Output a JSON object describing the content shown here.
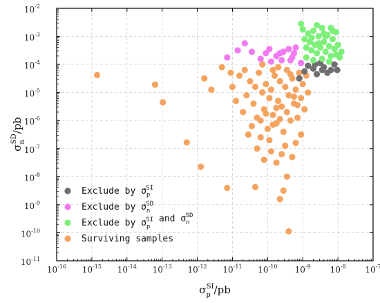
{
  "chart_data": {
    "type": "scatter",
    "x_scale": "log",
    "y_scale": "log",
    "xlim": [
      1e-16,
      1e-07
    ],
    "ylim": [
      1e-11,
      0.01
    ],
    "grid": true,
    "legend_position": "bottom-left",
    "x_ticks": [
      {
        "base": "10",
        "exp": "-16"
      },
      {
        "base": "10",
        "exp": "-15"
      },
      {
        "base": "10",
        "exp": "-14"
      },
      {
        "base": "10",
        "exp": "-13"
      },
      {
        "base": "10",
        "exp": "-12"
      },
      {
        "base": "10",
        "exp": "-11"
      },
      {
        "base": "10",
        "exp": "-10"
      },
      {
        "base": "10",
        "exp": "-9"
      },
      {
        "base": "10",
        "exp": "-8"
      },
      {
        "base": "10",
        "exp": "-7"
      }
    ],
    "y_ticks": [
      {
        "base": "10",
        "exp": "-11"
      },
      {
        "base": "10",
        "exp": "-10"
      },
      {
        "base": "10",
        "exp": "-9"
      },
      {
        "base": "10",
        "exp": "-8"
      },
      {
        "base": "10",
        "exp": "-7"
      },
      {
        "base": "10",
        "exp": "-6"
      },
      {
        "base": "10",
        "exp": "-5"
      },
      {
        "base": "10",
        "exp": "-4"
      },
      {
        "base": "10",
        "exp": "-3"
      },
      {
        "base": "10",
        "exp": "-2"
      }
    ],
    "xlabel": {
      "sym": "σ",
      "sup": "SI",
      "sub": "p",
      "unit": "/pb"
    },
    "ylabel": {
      "sym": "σ",
      "sup": "SD",
      "sub": "n",
      "unit": "/pb"
    },
    "series": [
      {
        "name": "Surviving samples",
        "legend_parts": [
          {
            "t": "Surviving samples"
          }
        ],
        "color": "#f4a460",
        "points": [
          [
            -14.85,
            -4.38
          ],
          [
            -13.2,
            -4.72
          ],
          [
            -12.98,
            -5.35
          ],
          [
            -12.3,
            -6.78
          ],
          [
            -11.9,
            -7.65
          ],
          [
            -11.15,
            -8.4
          ],
          [
            -10.35,
            -8.37
          ],
          [
            -9.4,
            -9.95
          ],
          [
            -11.8,
            -4.5
          ],
          [
            -11.6,
            -4.9
          ],
          [
            -11.3,
            -4.1
          ],
          [
            -11.0,
            -4.8
          ],
          [
            -10.9,
            -5.3
          ],
          [
            -10.8,
            -4.4
          ],
          [
            -10.7,
            -5.7
          ],
          [
            -10.6,
            -5.1
          ],
          [
            -10.5,
            -4.6
          ],
          [
            -10.45,
            -6.2
          ],
          [
            -10.4,
            -5.4
          ],
          [
            -10.35,
            -4.8
          ],
          [
            -10.3,
            -5.9
          ],
          [
            -10.25,
            -4.3
          ],
          [
            -10.2,
            -6.0
          ],
          [
            -10.15,
            -5.0
          ],
          [
            -10.1,
            -5.6
          ],
          [
            -10.05,
            -4.7
          ],
          [
            -10.0,
            -6.3
          ],
          [
            -9.95,
            -5.2
          ],
          [
            -9.9,
            -4.9
          ],
          [
            -9.85,
            -5.8
          ],
          [
            -9.8,
            -4.4
          ],
          [
            -9.75,
            -6.1
          ],
          [
            -9.7,
            -5.3
          ],
          [
            -9.65,
            -4.6
          ],
          [
            -9.6,
            -5.5
          ],
          [
            -9.55,
            -6.4
          ],
          [
            -9.5,
            -4.8
          ],
          [
            -9.45,
            -5.7
          ],
          [
            -9.4,
            -5.1
          ],
          [
            -9.35,
            -6.0
          ],
          [
            -9.3,
            -4.5
          ],
          [
            -9.25,
            -5.4
          ],
          [
            -9.2,
            -4.9
          ],
          [
            -9.15,
            -5.9
          ],
          [
            -9.1,
            -4.3
          ],
          [
            -9.05,
            -5.2
          ],
          [
            -9.0,
            -4.7
          ],
          [
            -8.95,
            -5.6
          ],
          [
            -8.9,
            -4.4
          ],
          [
            -8.85,
            -5.0
          ],
          [
            -10.3,
            -7.0
          ],
          [
            -10.1,
            -7.4
          ],
          [
            -9.9,
            -7.1
          ],
          [
            -9.75,
            -7.5
          ],
          [
            -9.6,
            -7.2
          ],
          [
            -9.45,
            -8.0
          ],
          [
            -9.3,
            -7.3
          ],
          [
            -9.2,
            -6.8
          ],
          [
            -9.05,
            -6.5
          ],
          [
            -9.65,
            -8.8
          ],
          [
            -9.55,
            -8.5
          ],
          [
            -10.2,
            -6.6
          ],
          [
            -9.5,
            -6.9
          ],
          [
            -10.55,
            -6.5
          ],
          [
            -9.95,
            -6.7
          ],
          [
            -9.85,
            -4.2
          ],
          [
            -9.7,
            -4.1
          ],
          [
            -9.45,
            -4.2
          ],
          [
            -10.65,
            -4.2
          ],
          [
            -11.05,
            -4.3
          ],
          [
            -10.15,
            -4.0
          ],
          [
            -9.35,
            -4.35
          ],
          [
            -9.75,
            -5.55
          ],
          [
            -9.65,
            -5.95
          ],
          [
            -9.85,
            -6.15
          ],
          [
            -10.05,
            -5.75
          ],
          [
            -9.25,
            -5.15
          ],
          [
            -9.15,
            -5.45
          ]
        ]
      },
      {
        "name": "Exclude by σ_n^SD",
        "legend_parts": [
          {
            "t": "Exclude by "
          },
          {
            "t": "σ",
            "sup": "SD",
            "sub": "n"
          }
        ],
        "color": "#f07af0",
        "points": [
          [
            -10.65,
            -3.25
          ],
          [
            -10.45,
            -3.55
          ],
          [
            -10.2,
            -3.8
          ],
          [
            -10.05,
            -3.6
          ],
          [
            -9.9,
            -3.9
          ],
          [
            -9.75,
            -3.7
          ],
          [
            -9.6,
            -3.85
          ],
          [
            -9.55,
            -3.55
          ],
          [
            -9.4,
            -3.45
          ],
          [
            -9.3,
            -3.75
          ],
          [
            -9.2,
            -3.4
          ],
          [
            -9.05,
            -3.95
          ],
          [
            -10.85,
            -3.5
          ],
          [
            -9.95,
            -3.45
          ],
          [
            -9.65,
            -3.6
          ],
          [
            -9.35,
            -3.85
          ],
          [
            -11.15,
            -3.75
          ],
          [
            -9.25,
            -3.6
          ]
        ]
      },
      {
        "name": "Exclude by σ_p^SI",
        "legend_parts": [
          {
            "t": "Exclude by "
          },
          {
            "t": "σ",
            "sup": "SI",
            "sub": "p"
          }
        ],
        "color": "#6e6e6e",
        "points": [
          [
            -9.1,
            -4.5
          ],
          [
            -8.95,
            -4.25
          ],
          [
            -8.85,
            -4.05
          ],
          [
            -8.7,
            -4.15
          ],
          [
            -8.6,
            -4.35
          ],
          [
            -8.5,
            -3.95
          ],
          [
            -8.4,
            -4.1
          ],
          [
            -8.3,
            -4.3
          ],
          [
            -8.2,
            -4.2
          ],
          [
            -8.1,
            -4.0
          ],
          [
            -8.02,
            -4.2
          ],
          [
            -8.45,
            -4.2
          ],
          [
            -8.65,
            -4.0
          ]
        ]
      },
      {
        "name": "Exclude by σ_p^SI and σ_n^SD",
        "legend_parts": [
          {
            "t": "Exclude by "
          },
          {
            "t": "σ",
            "sup": "SI",
            "sub": "p"
          },
          {
            "t": " and "
          },
          {
            "t": "σ",
            "sup": "SD",
            "sub": "n"
          }
        ],
        "color": "#7ef07a",
        "points": [
          [
            -9.05,
            -2.55
          ],
          [
            -9.0,
            -2.75
          ],
          [
            -8.95,
            -3.1
          ],
          [
            -8.9,
            -3.4
          ],
          [
            -8.85,
            -2.9
          ],
          [
            -8.8,
            -3.2
          ],
          [
            -8.75,
            -3.5
          ],
          [
            -8.7,
            -2.8
          ],
          [
            -8.65,
            -3.3
          ],
          [
            -8.6,
            -3.6
          ],
          [
            -8.55,
            -3.0
          ],
          [
            -8.5,
            -3.4
          ],
          [
            -8.45,
            -2.7
          ],
          [
            -8.4,
            -3.2
          ],
          [
            -8.35,
            -3.55
          ],
          [
            -8.3,
            -2.95
          ],
          [
            -8.25,
            -3.35
          ],
          [
            -8.2,
            -3.7
          ],
          [
            -8.15,
            -3.1
          ],
          [
            -8.1,
            -3.45
          ],
          [
            -8.05,
            -2.85
          ],
          [
            -8.0,
            -3.3
          ],
          [
            -7.95,
            -3.75
          ],
          [
            -7.9,
            -3.55
          ],
          [
            -8.6,
            -2.6
          ],
          [
            -8.4,
            -2.9
          ],
          [
            -8.2,
            -2.7
          ],
          [
            -8.9,
            -3.75
          ],
          [
            -8.7,
            -3.85
          ],
          [
            -8.45,
            -3.8
          ],
          [
            -8.25,
            -3.9
          ],
          [
            -8.05,
            -3.65
          ],
          [
            -8.75,
            -3.05
          ],
          [
            -8.55,
            -3.25
          ],
          [
            -8.35,
            -3.0
          ],
          [
            -8.15,
            -2.8
          ]
        ]
      }
    ]
  }
}
